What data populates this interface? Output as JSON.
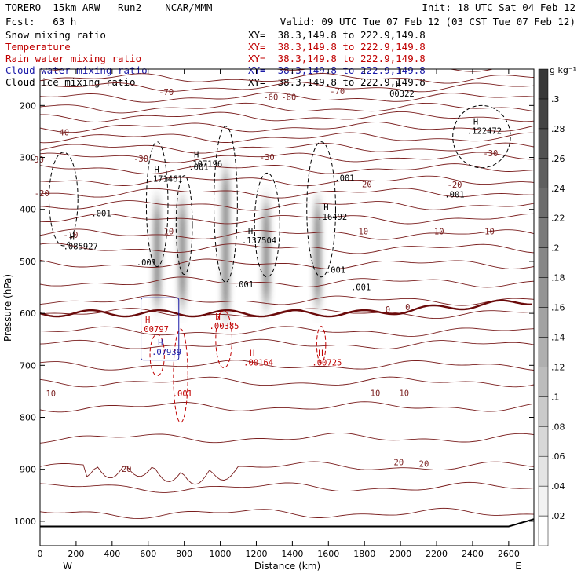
{
  "header": {
    "left1": "TORERO  15km ARW   Run2    NCAR/MMM",
    "left2": "Fcst:   63 h",
    "init": "Init: 18 UTC Sat 04 Feb 12",
    "valid": "Valid: 09 UTC Tue 07 Feb 12 (03 CST Tue 07 Feb 12)",
    "fields": [
      {
        "name": "Snow mixing ratio",
        "xy": "XY=  38.3,149.8 to 222.9,149.8",
        "color": "#000000"
      },
      {
        "name": "Temperature",
        "xy": "XY=  38.3,149.8 to 222.9,149.8",
        "color": "#c00000"
      },
      {
        "name": "Rain water mixing ratio",
        "xy": "XY=  38.3,149.8 to 222.9,149.8",
        "color": "#c00000"
      },
      {
        "name": "Cloud water mixing ratio",
        "xy": "XY=  38.3,149.8 to 222.9,149.8",
        "color": "#1a1aa8"
      },
      {
        "name": "Cloud ice mixing ratio",
        "xy": "XY=  38.3,149.8 to 222.9,149.8",
        "color": "#000000"
      }
    ]
  },
  "chart_data": {
    "type": "cross-section",
    "xlabel": "Distance (km)",
    "ylabel": "Pressure (hPa)",
    "xlim": [
      0,
      2740
    ],
    "ylim": [
      1047,
      130
    ],
    "xticks": [
      0,
      200,
      400,
      600,
      800,
      1000,
      1200,
      1400,
      1600,
      1800,
      2000,
      2200,
      2400,
      2600
    ],
    "yticks": [
      200,
      300,
      400,
      500,
      600,
      700,
      800,
      900,
      1000
    ],
    "x_end_labels": {
      "west": "W",
      "east": "E"
    },
    "colorbar": {
      "unit": "g kg⁻¹",
      "ticks": [
        ".02",
        ".04",
        ".06",
        ".08",
        ".1",
        ".12",
        ".14",
        ".16",
        ".18",
        ".2",
        ".22",
        ".24",
        ".26",
        ".28",
        ".3"
      ],
      "levels": [
        0.02,
        0.04,
        0.06,
        0.08,
        0.1,
        0.12,
        0.14,
        0.16,
        0.18,
        0.2,
        0.22,
        0.24,
        0.26,
        0.28,
        0.3
      ]
    },
    "isotherm_labels": [
      {
        "text": "-70",
        "x": 700,
        "p": 180
      },
      {
        "text": "-70",
        "x": 1650,
        "p": 178
      },
      {
        "text": "-60",
        "x": 1280,
        "p": 190
      },
      {
        "text": "-60",
        "x": 1380,
        "p": 190
      },
      {
        "text": "-40",
        "x": 120,
        "p": 258
      },
      {
        "text": "-30",
        "x": -20,
        "p": 310
      },
      {
        "text": "-30",
        "x": 560,
        "p": 308
      },
      {
        "text": "-30",
        "x": 1260,
        "p": 305
      },
      {
        "text": "-30",
        "x": 2500,
        "p": 298
      },
      {
        "text": "-20",
        "x": 10,
        "p": 375
      },
      {
        "text": "-20",
        "x": 1800,
        "p": 357
      },
      {
        "text": "-20",
        "x": 2300,
        "p": 358
      },
      {
        "text": "-10",
        "x": 170,
        "p": 455
      },
      {
        "text": "-10",
        "x": 700,
        "p": 448
      },
      {
        "text": "-10",
        "x": 1780,
        "p": 448
      },
      {
        "text": "-10",
        "x": 2200,
        "p": 448
      },
      {
        "text": "-10",
        "x": 2480,
        "p": 448
      },
      {
        "text": "0",
        "x": 1930,
        "p": 598
      },
      {
        "text": "0",
        "x": 2040,
        "p": 594
      },
      {
        "text": "10",
        "x": 60,
        "p": 760
      },
      {
        "text": "10",
        "x": 1860,
        "p": 759
      },
      {
        "text": "10",
        "x": 2020,
        "p": 759
      },
      {
        "text": "20",
        "x": 480,
        "p": 905
      },
      {
        "text": "20",
        "x": 1990,
        "p": 892
      },
      {
        "text": "20",
        "x": 2130,
        "p": 895
      }
    ],
    "max_labels": [
      {
        "mark": "H",
        "value": "00322",
        "x": 2000,
        "p": 183,
        "color": "#000000"
      },
      {
        "mark": "H",
        "value": ".122472",
        "x": 2430,
        "p": 255,
        "color": "#000000"
      },
      {
        "mark": "H",
        "value": ".107196",
        "x": 880,
        "p": 318,
        "color": "#000000"
      },
      {
        "mark": "H",
        "value": ".171461",
        "x": 660,
        "p": 347,
        "color": "#000000"
      },
      {
        "mark": "H",
        "value": ".16492",
        "x": 1600,
        "p": 420,
        "color": "#000000"
      },
      {
        "mark": "H",
        "value": ".137504",
        "x": 1180,
        "p": 465,
        "color": "#000000"
      },
      {
        "mark": "H",
        "value": ".085927",
        "x": 190,
        "p": 477,
        "color": "#000000"
      },
      {
        "mark": "H",
        "value": ".00797",
        "x": 610,
        "p": 636,
        "color": "#c00000"
      },
      {
        "mark": "H",
        "value": ".00385",
        "x": 1000,
        "p": 630,
        "color": "#c00000"
      },
      {
        "mark": "H",
        "value": ".00164",
        "x": 1190,
        "p": 700,
        "color": "#c00000"
      },
      {
        "mark": "H",
        "value": ".00725",
        "x": 1570,
        "p": 700,
        "color": "#c00000"
      },
      {
        "mark": "H",
        "value": ".07939",
        "x": 680,
        "p": 680,
        "color": "#1a1aa8"
      }
    ],
    "contour_value_labels": [
      {
        "text": ".001",
        "x": 880,
        "p": 324,
        "color": "#000000"
      },
      {
        "text": ".001",
        "x": 1690,
        "p": 345,
        "color": "#000000"
      },
      {
        "text": ".001",
        "x": 340,
        "p": 413,
        "color": "#000000"
      },
      {
        "text": ".001",
        "x": 2300,
        "p": 377,
        "color": "#000000"
      },
      {
        "text": ".001",
        "x": 590,
        "p": 508,
        "color": "#000000"
      },
      {
        "text": ".001",
        "x": 1130,
        "p": 550,
        "color": "#000000"
      },
      {
        "text": ".001",
        "x": 1640,
        "p": 522,
        "color": "#000000"
      },
      {
        "text": ".001",
        "x": 1780,
        "p": 555,
        "color": "#000000"
      },
      {
        "text": ".001",
        "x": 790,
        "p": 760,
        "color": "#c00000"
      }
    ],
    "snow_cores_km": [
      650,
      790,
      1030,
      1255,
      1540
    ],
    "freezing_level_hPa": 600,
    "surface_pressure_hPa": 1010
  }
}
